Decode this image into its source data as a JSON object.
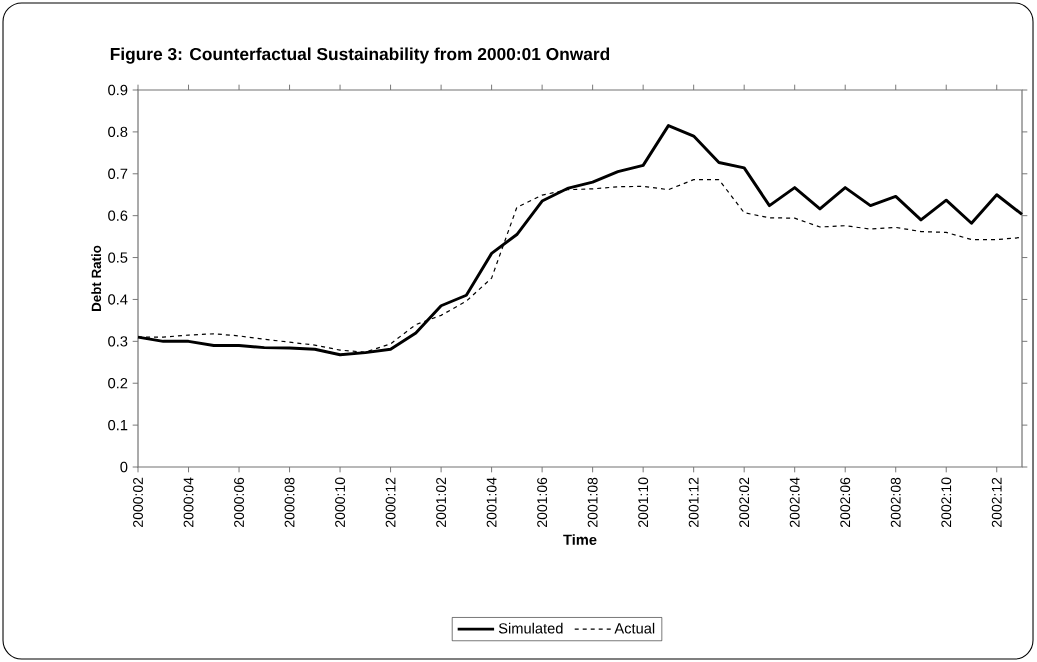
{
  "chart_data": {
    "type": "line",
    "title": "Figure 3: Counterfactual Sustainability from 2000:01 Onward",
    "xlabel": "Time",
    "ylabel": "Debt Ratio",
    "categories": [
      "2000:02",
      null,
      "2000:04",
      null,
      "2000:06",
      null,
      "2000:08",
      null,
      "2000:10",
      null,
      "2000:12",
      null,
      "2001:02",
      null,
      "2001:04",
      null,
      "2001:06",
      null,
      "2001:08",
      null,
      "2001:10",
      null,
      "2001:12",
      null,
      "2002:02",
      null,
      "2002:04",
      null,
      "2002:06",
      null,
      "2002:08",
      null,
      "2002:10",
      null,
      "2002:12",
      null
    ],
    "series": [
      {
        "name": "Simulated",
        "color": "#000000",
        "line_style": "solid",
        "values": [
          0.31,
          0.3,
          0.3,
          0.29,
          0.29,
          0.285,
          0.284,
          0.281,
          0.268,
          0.273,
          0.281,
          0.32,
          0.385,
          0.41,
          0.51,
          0.555,
          0.635,
          0.665,
          0.68,
          0.705,
          0.72,
          0.815,
          0.79,
          0.727,
          0.714,
          0.624,
          0.667,
          0.616,
          0.667,
          0.624,
          0.646,
          0.59,
          0.637,
          0.582,
          0.65,
          0.603
        ]
      },
      {
        "name": "Actual",
        "color": "#000000",
        "line_style": "dashed",
        "values": [
          0.31,
          0.31,
          0.315,
          0.318,
          0.313,
          0.305,
          0.298,
          0.291,
          0.279,
          0.274,
          0.294,
          0.34,
          0.362,
          0.396,
          0.451,
          0.62,
          0.649,
          0.662,
          0.664,
          0.669,
          0.67,
          0.662,
          0.686,
          0.686,
          0.607,
          0.595,
          0.594,
          0.573,
          0.576,
          0.568,
          0.572,
          0.562,
          0.56,
          0.543,
          0.543,
          0.548
        ]
      }
    ],
    "ylim": [
      0,
      0.9
    ],
    "yticks": [
      0,
      0.1,
      0.2,
      0.3,
      0.4,
      0.5,
      0.6,
      0.7,
      0.8,
      0.9
    ],
    "legend": "bottom"
  }
}
